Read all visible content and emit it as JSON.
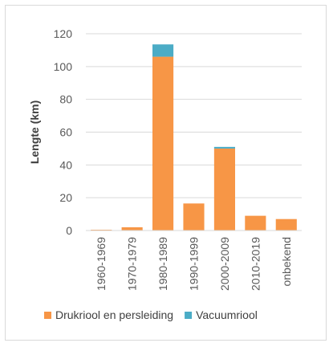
{
  "chart_data": {
    "type": "bar",
    "stacked": true,
    "categories": [
      "1960-1969",
      "1970-1979",
      "1980-1989",
      "1990-1999",
      "2000-2009",
      "2010-2019",
      "onbekend"
    ],
    "series": [
      {
        "name": "Drukriool en persleiding",
        "color": "#f79646",
        "values": [
          0.5,
          2,
          106,
          16.5,
          50,
          9,
          7
        ]
      },
      {
        "name": "Vacuumriool",
        "color": "#4bacc6",
        "values": [
          0,
          0,
          7.5,
          0,
          1,
          0,
          0
        ]
      }
    ],
    "ylabel": "Lengte (km)",
    "xlabel": "",
    "ylim": [
      0,
      120
    ],
    "yticks": [
      0,
      20,
      40,
      60,
      80,
      100,
      120
    ],
    "grid": "horizontal",
    "legend": "bottom"
  }
}
